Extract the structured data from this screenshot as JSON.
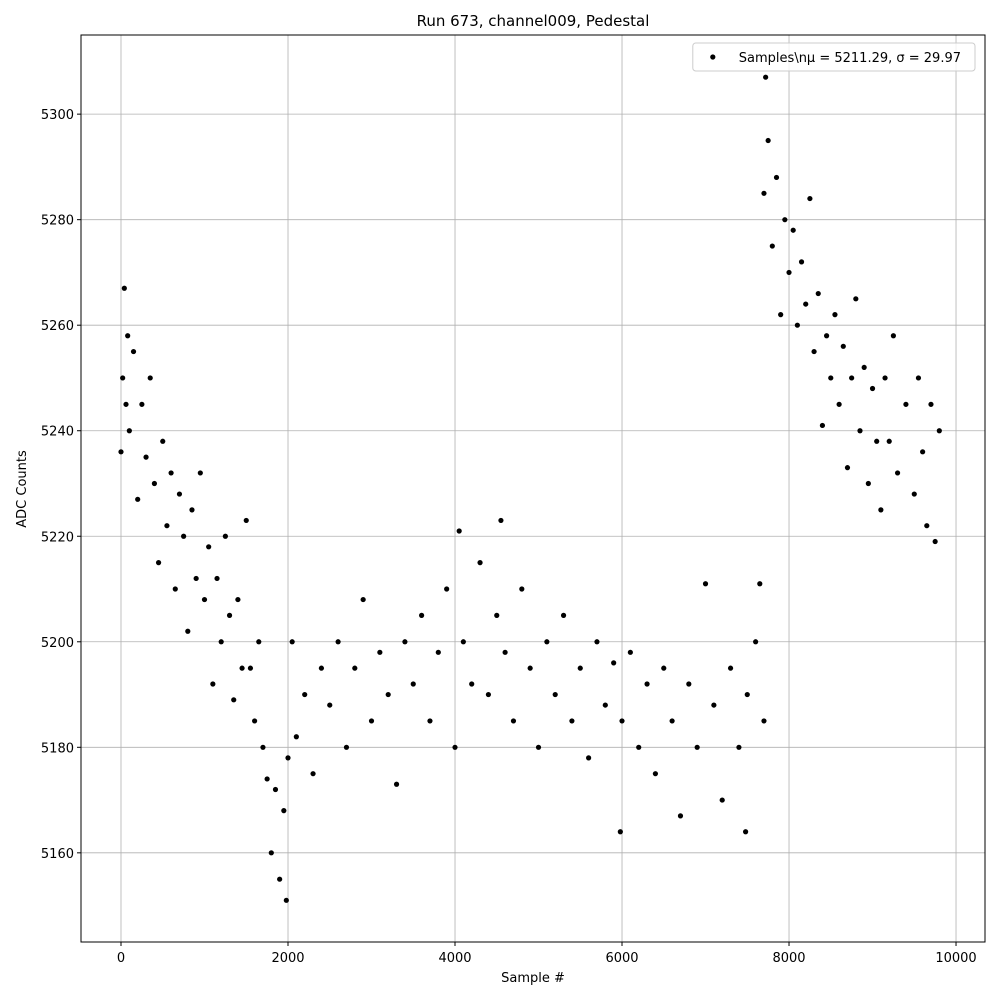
{
  "chart_data": {
    "type": "scatter",
    "title": "Run 673, channel009, Pedestal",
    "x_label": "Sample #",
    "y_label": "ADC Counts",
    "xlim": [
      -479,
      10347
    ],
    "ylim": [
      5143.1,
      5315
    ],
    "xticks": [
      0,
      2000,
      4000,
      6000,
      8000,
      10000
    ],
    "yticks": [
      5160,
      5180,
      5200,
      5220,
      5240,
      5260,
      5280,
      5300
    ],
    "grid": true,
    "legend": "upper right",
    "series": [
      {
        "name": "Samples\\nμ = 5211.29, σ = 29.97",
        "color": "#000000",
        "x": [
          0,
          20,
          40,
          60,
          80,
          100,
          150,
          200,
          250,
          300,
          350,
          400,
          450,
          500,
          550,
          600,
          650,
          700,
          750,
          800,
          850,
          900,
          950,
          1000,
          1050,
          1100,
          1150,
          1200,
          1250,
          1300,
          1350,
          1400,
          1450,
          1500,
          1550,
          1600,
          1650,
          1700,
          1750,
          1800,
          1850,
          1900,
          1950,
          1980,
          2000,
          2050,
          2100,
          2200,
          2300,
          2400,
          2500,
          2600,
          2700,
          2800,
          2900,
          3000,
          3100,
          3200,
          3300,
          3400,
          3500,
          3600,
          3700,
          3800,
          3900,
          4000,
          4050,
          4100,
          4200,
          4300,
          4400,
          4500,
          4550,
          4600,
          4700,
          4800,
          4900,
          5000,
          5100,
          5200,
          5300,
          5400,
          5500,
          5600,
          5700,
          5800,
          5900,
          5980,
          6000,
          6100,
          6200,
          6300,
          6400,
          6500,
          6600,
          6700,
          6800,
          6900,
          7000,
          7100,
          7200,
          7300,
          7400,
          7480,
          7500,
          7600,
          7650,
          7700,
          7700,
          7720,
          7750,
          7800,
          7850,
          7900,
          7950,
          8000,
          8050,
          8100,
          8150,
          8200,
          8250,
          8300,
          8350,
          8400,
          8450,
          8500,
          8550,
          8600,
          8650,
          8700,
          8750,
          8800,
          8850,
          8900,
          8950,
          9000,
          9050,
          9100,
          9150,
          9200,
          9250,
          9300,
          9400,
          9500,
          9550,
          9600,
          9650,
          9700,
          9750,
          9800
        ],
        "values": [
          5236,
          5250,
          5267,
          5245,
          5258,
          5240,
          5255,
          5227,
          5245,
          5235,
          5250,
          5230,
          5215,
          5238,
          5222,
          5232,
          5210,
          5228,
          5220,
          5202,
          5225,
          5212,
          5232,
          5208,
          5218,
          5192,
          5212,
          5200,
          5220,
          5205,
          5189,
          5208,
          5195,
          5223,
          5195,
          5185,
          5200,
          5180,
          5174,
          5160,
          5172,
          5155,
          5168,
          5151,
          5178,
          5200,
          5182,
          5190,
          5175,
          5195,
          5188,
          5200,
          5180,
          5195,
          5208,
          5185,
          5198,
          5190,
          5173,
          5200,
          5192,
          5205,
          5185,
          5198,
          5210,
          5180,
          5221,
          5200,
          5192,
          5215,
          5190,
          5205,
          5223,
          5198,
          5185,
          5210,
          5195,
          5180,
          5200,
          5190,
          5205,
          5185,
          5195,
          5178,
          5200,
          5188,
          5196,
          5164,
          5185,
          5198,
          5180,
          5192,
          5175,
          5195,
          5185,
          5167,
          5192,
          5180,
          5211,
          5188,
          5170,
          5195,
          5180,
          5164,
          5190,
          5200,
          5211,
          5185,
          5285,
          5307,
          5295,
          5275,
          5288,
          5262,
          5280,
          5270,
          5278,
          5260,
          5272,
          5264,
          5284,
          5255,
          5266,
          5241,
          5258,
          5250,
          5262,
          5245,
          5256,
          5233,
          5250,
          5265,
          5240,
          5252,
          5230,
          5248,
          5238,
          5225,
          5250,
          5238,
          5258,
          5232,
          5245,
          5228,
          5250,
          5236,
          5222,
          5245,
          5219,
          5240
        ]
      }
    ]
  }
}
